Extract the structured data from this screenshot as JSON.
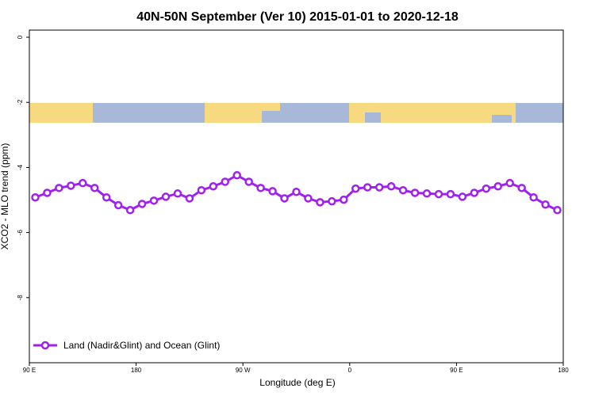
{
  "chart_data": {
    "type": "line",
    "title": "40N-50N September (Ver 10)   2015-01-01 to 2020-12-18",
    "xlabel": "Longitude (deg E)",
    "ylabel": "XCO2 - MLO trend (ppm)",
    "x": [
      95,
      105,
      115,
      125,
      135,
      145,
      155,
      165,
      175,
      185,
      195,
      205,
      215,
      225,
      235,
      245,
      255,
      265,
      275,
      285,
      295,
      305,
      315,
      325,
      335,
      345,
      355,
      365,
      375,
      385,
      395,
      405,
      415,
      425,
      435,
      445,
      455,
      465,
      475,
      485,
      495,
      505,
      515,
      525,
      535
    ],
    "series": [
      {
        "name": "Land (Nadir&Glint) and Ocean (Glint)",
        "color": "#a020f0",
        "values": [
          -4.92,
          -4.78,
          -4.63,
          -4.56,
          -4.48,
          -4.63,
          -4.92,
          -5.16,
          -5.31,
          -5.12,
          -5.02,
          -4.9,
          -4.8,
          -4.95,
          -4.7,
          -4.58,
          -4.44,
          -4.24,
          -4.44,
          -4.63,
          -4.73,
          -4.95,
          -4.75,
          -4.95,
          -5.07,
          -5.04,
          -4.99,
          -4.65,
          -4.61,
          -4.61,
          -4.58,
          -4.7,
          -4.78,
          -4.8,
          -4.82,
          -4.82,
          -4.9,
          -4.78,
          -4.65,
          -4.58,
          -4.48,
          -4.63,
          -4.92,
          -5.14,
          -5.31
        ]
      }
    ],
    "xlim": [
      90,
      540
    ],
    "xticks": [
      {
        "value": 90,
        "label": "90 E"
      },
      {
        "value": 180,
        "label": "180"
      },
      {
        "value": 270,
        "label": "90 W"
      },
      {
        "value": 360,
        "label": "0"
      },
      {
        "value": 450,
        "label": "90 E"
      },
      {
        "value": 540,
        "label": "180"
      }
    ],
    "ylim": [
      -10,
      0.22
    ],
    "yticks": [
      0,
      -2,
      -4,
      -6,
      -8
    ],
    "legend": "bottom-left"
  }
}
